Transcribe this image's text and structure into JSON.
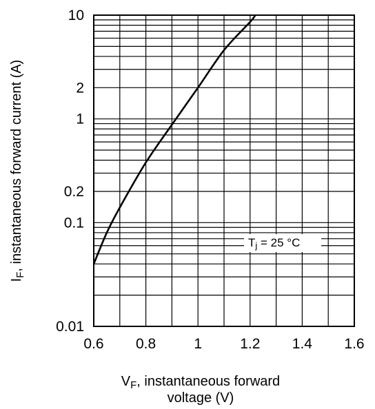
{
  "chart_data": {
    "type": "line",
    "xlabel": "V",
    "xlabel_sub": "F",
    "xlabel_rest": ", instantaneous forward",
    "xlabel_line2": "voltage (V)",
    "ylabel": "I",
    "ylabel_sub": "F",
    "ylabel_rest": ", instantaneous forward current  (A)",
    "x_scale": "linear",
    "y_scale": "log",
    "xlim": [
      0.6,
      1.6
    ],
    "ylim": [
      0.01,
      10
    ],
    "x_ticks": [
      "0.6",
      "0.8",
      "1",
      "1.2",
      "1.4",
      "1.6"
    ],
    "y_ticks": [
      "0.01",
      "0.1",
      "0.2",
      "1",
      "2",
      "10"
    ],
    "grid": true,
    "annotation": {
      "main": "T",
      "sub": "j",
      "rest": " = 25 °C"
    },
    "series": [
      {
        "x": [
          0.6,
          0.65,
          0.7,
          0.8,
          0.9,
          1.0,
          1.1,
          1.2,
          1.22
        ],
        "y": [
          0.04,
          0.08,
          0.14,
          0.38,
          0.88,
          2.0,
          4.6,
          8.6,
          10
        ]
      }
    ]
  }
}
